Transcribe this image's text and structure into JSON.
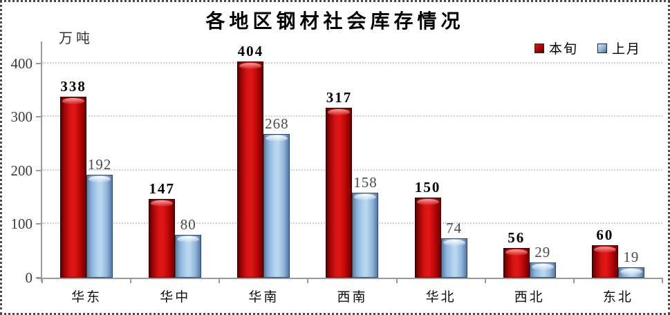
{
  "chart_data": {
    "type": "bar",
    "title": "各地区钢材社会库存情况",
    "unit": "万吨",
    "categories": [
      "华东",
      "华中",
      "华南",
      "西南",
      "华北",
      "西北",
      "东北"
    ],
    "series": [
      {
        "name": "本旬",
        "color": "#cc0000",
        "values": [
          338,
          147,
          404,
          317,
          150,
          56,
          60
        ]
      },
      {
        "name": "上月",
        "color": "#a8cce8",
        "values": [
          192,
          80,
          268,
          158,
          74,
          29,
          19
        ]
      }
    ],
    "ylim": [
      0,
      441
    ],
    "yticks": [
      0,
      100,
      200,
      300,
      400
    ],
    "grid": true,
    "legend_position": "top-right",
    "xlabel": "",
    "ylabel": "万吨"
  }
}
